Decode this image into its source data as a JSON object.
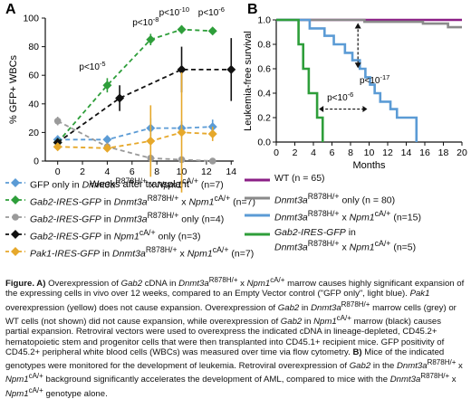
{
  "panel_letters": {
    "a": "A",
    "b": "B"
  },
  "chart_data": [
    {
      "type": "line",
      "panel": "A",
      "ylabel": "% GFP+ WBCs",
      "xlabel": "Weeks after transplant",
      "xlim": [
        -1,
        14.2
      ],
      "ylim": [
        0,
        100
      ],
      "xticks": [
        "0",
        "2",
        "4",
        "6",
        "8",
        "10",
        "12",
        "14"
      ],
      "yticks": [
        "0",
        "20",
        "40",
        "60",
        "80",
        "100"
      ],
      "series": [
        {
          "color": "#5b9bd5",
          "marker": "diamond",
          "points": [
            [
              0,
              15,
              3
            ],
            [
              4,
              15,
              3
            ],
            [
              7.5,
              23,
              7
            ],
            [
              10,
              23,
              5
            ],
            [
              12.5,
              24,
              5
            ]
          ]
        },
        {
          "color": "#2e9e3a",
          "marker": "diamond",
          "points": [
            [
              0,
              13,
              3
            ],
            [
              4,
              53,
              5
            ],
            [
              7.5,
              85,
              4
            ],
            [
              10,
              92,
              3
            ],
            [
              12.5,
              91,
              2
            ]
          ]
        },
        {
          "color": "#9a9a9a",
          "marker": "circle",
          "points": [
            [
              0,
              28,
              3
            ],
            [
              4,
              10,
              3
            ],
            [
              7.5,
              2,
              1
            ],
            [
              10,
              1,
              1
            ],
            [
              12.5,
              0,
              1
            ]
          ]
        },
        {
          "color": "#111111",
          "marker": "diamond",
          "points": [
            [
              0,
              13,
              3
            ],
            [
              5,
              44,
              9
            ],
            [
              10,
              64,
              16
            ],
            [
              14,
              64,
              22
            ]
          ]
        },
        {
          "color": "#e6a82b",
          "marker": "diamond",
          "points": [
            [
              0,
              10,
              2
            ],
            [
              4,
              9,
              2
            ],
            [
              7.5,
              14,
              25
            ],
            [
              10,
              20,
              42
            ],
            [
              12.5,
              19,
              5
            ]
          ]
        }
      ],
      "annotations": [
        {
          "text": "p<10",
          "sup": "-5",
          "x": 2.8,
          "y": 64
        },
        {
          "text": "p<10",
          "sup": "-8",
          "x": 7.1,
          "y": 95
        },
        {
          "text": "p<10",
          "sup": "-10",
          "x": 9.4,
          "y": 102
        },
        {
          "text": "p<10",
          "sup": "-6",
          "x": 12.4,
          "y": 102
        }
      ],
      "legend": [
        {
          "color": "#5b9bd5",
          "marker": "diamond",
          "text": "GFP only in Dnmt3a<sup>R878H/+</sup> x Npm1<sup>cA/+</sup> (n=7)"
        },
        {
          "color": "#2e9e3a",
          "marker": "diamond",
          "text": "Gab2-IRES-GFP in Dnmt3a<sup>R878H/+</sup> x Npm1<sup>cA/+</sup> (n=7)"
        },
        {
          "color": "#9a9a9a",
          "marker": "circle",
          "text": "Gab2-IRES-GFP in Dnmt3a<sup>R878H/+</sup> only (n=4)"
        },
        {
          "color": "#111111",
          "marker": "diamond",
          "text": "Gab2-IRES-GFP in Npm1<sup>cA/+</sup> only (n=3)"
        },
        {
          "color": "#e6a82b",
          "marker": "diamond",
          "text": "Pak1-IRES-GFP in Dnmt3a<sup>R878H/+</sup> x Npm1<sup>cA/+</sup> (n=7)"
        }
      ]
    },
    {
      "type": "line",
      "panel": "B",
      "ylabel": "Leukemia-free survival",
      "xlabel": "Months",
      "xlim": [
        0,
        20
      ],
      "ylim": [
        0,
        1.0
      ],
      "xticks": [
        "0",
        "2",
        "4",
        "6",
        "8",
        "10",
        "12",
        "14",
        "16",
        "18",
        "20"
      ],
      "yticks": [
        "0.0",
        "0.2",
        "0.4",
        "0.6",
        "0.8",
        "1.0"
      ],
      "series": [
        {
          "color": "#8b1f86",
          "points": [
            [
              0,
              1.0
            ],
            [
              20,
              1.0
            ]
          ]
        },
        {
          "color": "#8a8a8a",
          "points": [
            [
              0,
              1.0
            ],
            [
              9.5,
              1.0
            ],
            [
              9.5,
              0.985
            ],
            [
              15.8,
              0.985
            ],
            [
              15.8,
              0.97
            ],
            [
              18.5,
              0.97
            ],
            [
              18.5,
              0.94
            ],
            [
              20,
              0.94
            ]
          ]
        },
        {
          "color": "#5b9bd5",
          "points": [
            [
              0,
              1.0
            ],
            [
              3.6,
              1.0
            ],
            [
              3.6,
              0.93
            ],
            [
              5.2,
              0.93
            ],
            [
              5.2,
              0.87
            ],
            [
              6.2,
              0.87
            ],
            [
              6.2,
              0.8
            ],
            [
              7.4,
              0.8
            ],
            [
              7.4,
              0.73
            ],
            [
              8.2,
              0.73
            ],
            [
              8.2,
              0.67
            ],
            [
              9.0,
              0.67
            ],
            [
              9.0,
              0.6
            ],
            [
              9.6,
              0.6
            ],
            [
              9.6,
              0.53
            ],
            [
              10.1,
              0.53
            ],
            [
              10.1,
              0.47
            ],
            [
              10.6,
              0.47
            ],
            [
              10.6,
              0.4
            ],
            [
              11.2,
              0.4
            ],
            [
              11.2,
              0.33
            ],
            [
              12.3,
              0.33
            ],
            [
              12.3,
              0.27
            ],
            [
              13.0,
              0.27
            ],
            [
              13.0,
              0.2
            ],
            [
              15.1,
              0.2
            ],
            [
              15.1,
              0.0
            ]
          ]
        },
        {
          "color": "#2e9e3a",
          "points": [
            [
              0,
              1.0
            ],
            [
              2.4,
              1.0
            ],
            [
              2.4,
              0.8
            ],
            [
              2.9,
              0.8
            ],
            [
              2.9,
              0.6
            ],
            [
              3.5,
              0.6
            ],
            [
              3.5,
              0.4
            ],
            [
              4.4,
              0.4
            ],
            [
              4.4,
              0.2
            ],
            [
              5.0,
              0.2
            ],
            [
              5.0,
              0.0
            ]
          ]
        }
      ],
      "annotations": [
        {
          "text": "p<10",
          "sup": "-17",
          "x": 10.6,
          "y": 0.48
        },
        {
          "text": "p<10",
          "sup": "-6",
          "x": 6.9,
          "y": 0.34
        }
      ],
      "legend": [
        {
          "color": "#8b1f86",
          "text": "WT (n = 65)"
        },
        {
          "color": "#8a8a8a",
          "text": "Dnmt3a<sup>R878H/+</sup> only (n = 80)"
        },
        {
          "color": "#5b9bd5",
          "text": "Dnmt3a<sup>R878H/+</sup> x Npm1<sup>cA/+</sup> (n=15)"
        },
        {
          "color": "#2e9e3a",
          "text": "Gab2-IRES-GFP in<br>Dnmt3a<sup>R878H/+</sup> x Npm1<sup>cA/+</sup> (n=5)"
        }
      ]
    }
  ],
  "caption_html": "<b>Figure. A)</b> Overexpression of <i>Gab2</i> cDNA in <i>Dnmt3a</i><sup>R878H/+</sup> x <i>Npm1</i><sup>cA/+</sup> marrow causes highly significant expansion of the expressing cells in vivo over 12 weeks, compared to an Empty Vector control (\"GFP only\", light blue). <i>Pak1</i> overexpression (yellow) does not cause expansion. Overexpression of <i>Gab2</i> in <i>Dnmt3a</i><sup>R878H/+</sup> marrow cells (grey) or WT cells (not shown) did not cause expansion, while overexpression of <i>Gab2</i> in <i>Npm1</i><sup>cA/+</sup> marrow (black) causes partial expansion. Retroviral vectors were used to overexpress the indicated cDNA in lineage-depleted, CD45.2+ hematopoietic stem and progenitor cells that were then transplanted into CD45.1+ recipient mice. GFP positivity of CD45.2+ peripheral white blood cells (WBCs) was measured over time via flow cytometry. <b>B)</b> Mice of the indicated genotypes were monitored for the development of leukemia. Retroviral overexpression of <i>Gab2</i> in the <i>Dnmt3a</i><sup>R878H/+</sup> x <i>Npm1</i><sup>cA/+</sup> background significantly accelerates the development of AML, compared to mice with the <i>Dnmt3a</i><sup>R878H/+</sup> x <i>Npm1</i><sup>cA/+</sup> genotype alone."
}
